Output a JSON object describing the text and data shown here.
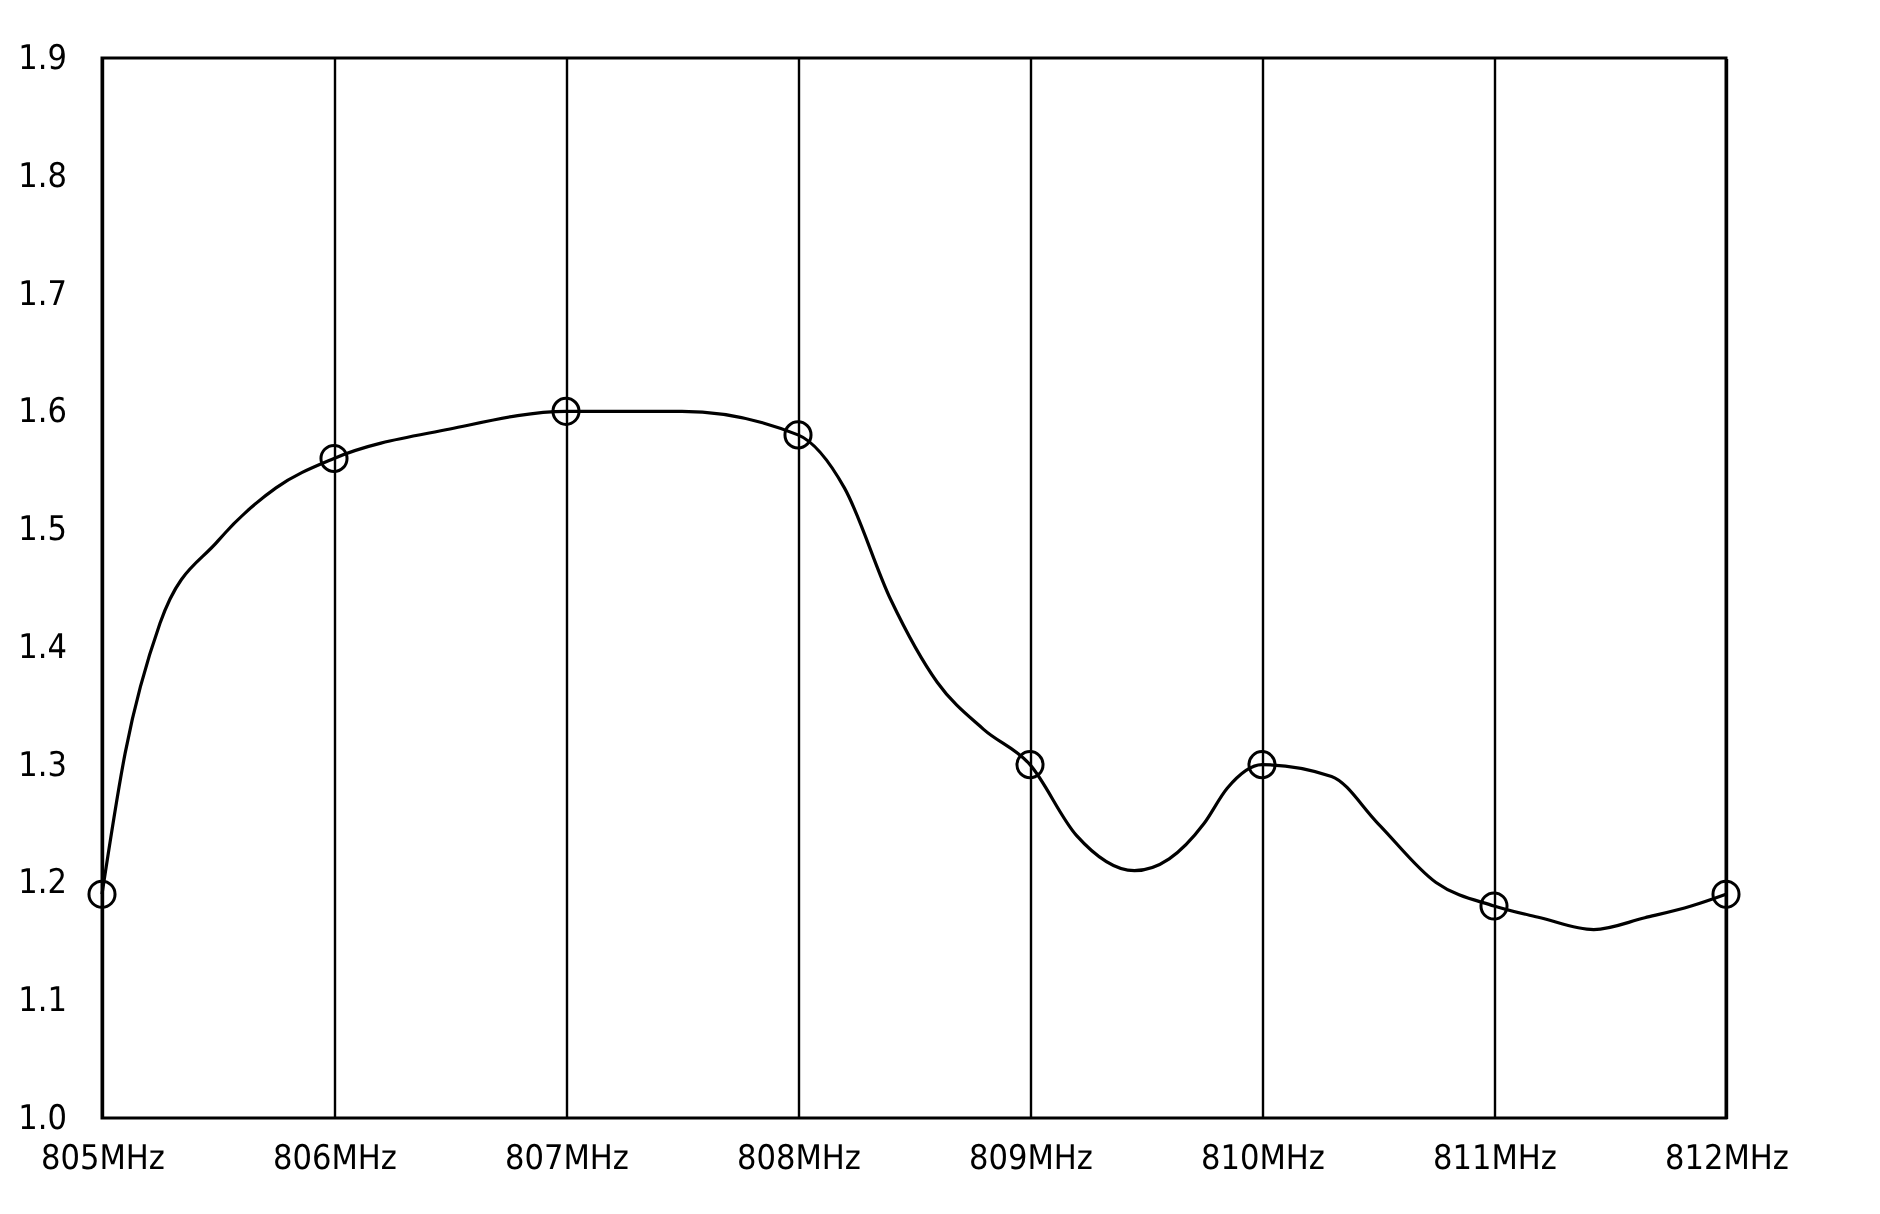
{
  "chart_data": {
    "type": "line",
    "xlim": [
      805,
      812
    ],
    "xticks": [
      {
        "value": 805,
        "label": "805MHz"
      },
      {
        "value": 806,
        "label": "806MHz"
      },
      {
        "value": 807,
        "label": "807MHz"
      },
      {
        "value": 808,
        "label": "808MHz"
      },
      {
        "value": 809,
        "label": "809MHz"
      },
      {
        "value": 810,
        "label": "810MHz"
      },
      {
        "value": 811,
        "label": "811MHz"
      },
      {
        "value": 812,
        "label": "812MHz"
      }
    ],
    "ylim": [
      1.0,
      1.9
    ],
    "yticks": [
      {
        "value": 1,
        "label": "1.0"
      },
      1.1,
      1.2,
      1.3,
      1.4,
      1.5,
      1.6,
      1.7,
      1.8,
      1.9
    ],
    "grid": "x",
    "line_style": "solid",
    "series": [
      {
        "marker": "none",
        "color": "#000000",
        "x": [
          805,
          805.1,
          805.25,
          805.5,
          805.75,
          806,
          806.5,
          807,
          807.5,
          808,
          808.2,
          808.4,
          808.6,
          808.8,
          809,
          809.2,
          809.45,
          809.6,
          809.75,
          809.85,
          810,
          810.3,
          810.5,
          810.75,
          811,
          811.2,
          811.43,
          811.65,
          811.85,
          812
        ],
        "values": [
          1.19,
          1.31,
          1.42,
          1.49,
          1.535,
          1.56,
          1.585,
          1.6,
          1.6,
          1.58,
          1.535,
          1.44,
          1.37,
          1.33,
          1.3,
          1.24,
          1.21,
          1.22,
          1.25,
          1.28,
          1.3,
          1.29,
          1.25,
          1.2,
          1.18,
          1.17,
          1.16,
          1.17,
          1.18,
          1.19
        ]
      },
      {
        "type": "scatter",
        "marker": "circle",
        "color": "#000000",
        "x": [
          805,
          806,
          807,
          808,
          809,
          810,
          811,
          812
        ],
        "values": [
          1.19,
          1.56,
          1.6,
          1.58,
          1.3,
          1.3,
          1.18,
          1.19
        ]
      }
    ]
  }
}
